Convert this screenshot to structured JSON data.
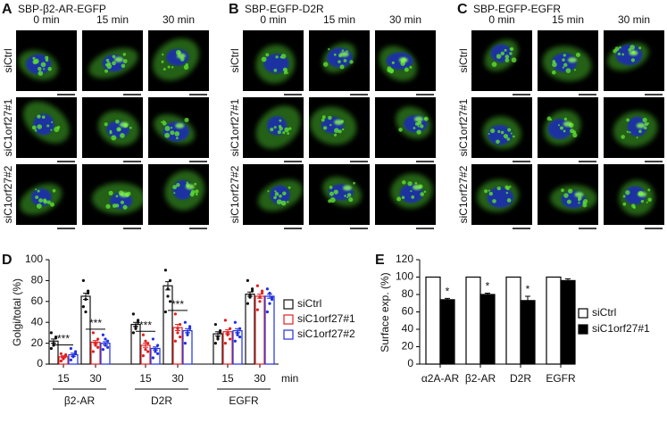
{
  "panels": [
    {
      "label": "A",
      "title": "SBP-β2-AR-EGFP",
      "columns": [
        "0 min",
        "15 min",
        "30 min"
      ],
      "rows": [
        "siCtrl",
        "siC1orf27#1",
        "siC1orf27#2"
      ]
    },
    {
      "label": "B",
      "title": "SBP-EGFP-D2R",
      "columns": [
        "0 min",
        "15 min",
        "30 min"
      ],
      "rows": [
        "siCtrl",
        "siC1orf27#1",
        "siC1orf27#2"
      ]
    },
    {
      "label": "C",
      "title": "SBP-EGFP-EGFR",
      "columns": [
        "0 min",
        "15 min",
        "30 min"
      ],
      "rows": [
        "siCtrl",
        "siC1orf27#1",
        "siC1orf27#2"
      ]
    }
  ],
  "chart_data": [
    {
      "type": "bar",
      "label": "D",
      "y_label": "Golgi/total (%)",
      "categories": [
        "15",
        "30",
        "15",
        "30",
        "15",
        "30"
      ],
      "x_unit": "min",
      "groups": [
        "β2-AR",
        "D2R",
        "EGFR"
      ],
      "ylim": [
        0,
        100
      ],
      "yticks": [
        0,
        20,
        40,
        60,
        80,
        100
      ],
      "annotations": [
        "***",
        "***",
        "***",
        "***"
      ],
      "legend": "right",
      "series": [
        {
          "name": "siCtrl",
          "color": "#111111",
          "values": [
            22,
            65,
            38,
            75,
            29,
            67
          ],
          "errors": [
            2,
            3,
            2,
            4,
            2,
            2
          ],
          "points": [
            [
              15,
              20,
              25,
              30,
              18,
              26
            ],
            [
              55,
              62,
              70,
              80,
              50,
              68
            ],
            [
              30,
              36,
              42,
              48,
              34,
              40
            ],
            [
              50,
              65,
              80,
              90,
              72,
              60
            ],
            [
              20,
              26,
              32,
              38,
              24,
              30
            ],
            [
              58,
              64,
              70,
              80,
              66,
              72
            ]
          ]
        },
        {
          "name": "siC1orf27#1",
          "color": "#e02020",
          "values": [
            7,
            21,
            18,
            35,
            31,
            65
          ],
          "errors": [
            1,
            1.5,
            2,
            3,
            2,
            2
          ],
          "points": [
            [
              3,
              5,
              8,
              10,
              6,
              9
            ],
            [
              12,
              18,
              24,
              30,
              20,
              16
            ],
            [
              8,
              14,
              20,
              28,
              22,
              12
            ],
            [
              22,
              30,
              38,
              48,
              34,
              26
            ],
            [
              20,
              28,
              34,
              42,
              30,
              24
            ],
            [
              52,
              60,
              68,
              75,
              64,
              70
            ]
          ]
        },
        {
          "name": "siC1orf27#2",
          "color": "#2030e0",
          "values": [
            9,
            20,
            15,
            32,
            32,
            65
          ],
          "errors": [
            1.5,
            1.5,
            1.5,
            2,
            2,
            2
          ],
          "points": [
            [
              4,
              7,
              10,
              15,
              8,
              12
            ],
            [
              14,
              18,
              22,
              28,
              24,
              16
            ],
            [
              6,
              12,
              18,
              24,
              14,
              10
            ],
            [
              20,
              28,
              34,
              40,
              30,
              36
            ],
            [
              22,
              28,
              34,
              40,
              30,
              26
            ],
            [
              50,
              58,
              64,
              72,
              68,
              62
            ]
          ]
        }
      ]
    },
    {
      "type": "bar",
      "label": "E",
      "y_label": "Surface exp. (%)",
      "categories": [
        "α2A-AR",
        "β2-AR",
        "D2R",
        "EGFR"
      ],
      "ylim": [
        0,
        120
      ],
      "yticks": [
        0,
        20,
        40,
        60,
        80,
        100,
        120
      ],
      "annotations": [
        "*",
        "*",
        "*"
      ],
      "legend": "right",
      "series": [
        {
          "name": "siCtrl",
          "color": "#ffffff",
          "values": [
            100,
            100,
            100,
            100
          ]
        },
        {
          "name": "siC1orf27#1",
          "color": "#000000",
          "values": [
            74,
            80,
            73,
            96
          ],
          "errors": [
            1.5,
            1.5,
            5,
            2
          ]
        }
      ]
    }
  ]
}
